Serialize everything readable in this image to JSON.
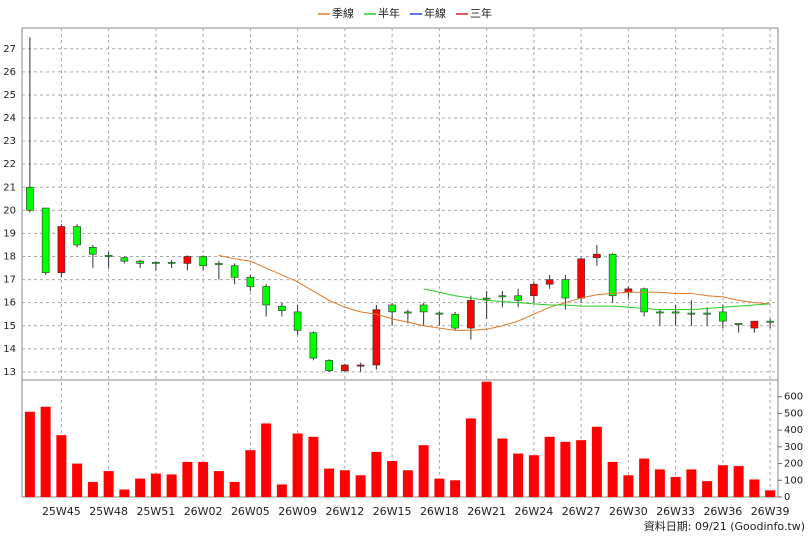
{
  "chart_data": {
    "type": "candlestick",
    "categories": [
      null,
      null,
      "25W45",
      null,
      null,
      "25W48",
      null,
      null,
      "25W51",
      null,
      null,
      "26W02",
      null,
      null,
      "26W05",
      null,
      null,
      "26W09",
      null,
      null,
      "26W12",
      null,
      null,
      "26W15",
      null,
      null,
      "26W18",
      null,
      null,
      "26W21",
      null,
      null,
      "26W24",
      null,
      null,
      "26W27",
      null,
      null,
      "26W30",
      null,
      null,
      "26W33",
      null,
      null,
      "26W36",
      null,
      null,
      "26W39"
    ],
    "open": [
      21.0,
      20.1,
      17.3,
      19.3,
      18.4,
      18.05,
      17.95,
      17.8,
      17.75,
      17.75,
      17.7,
      18.0,
      17.7,
      17.6,
      17.1,
      16.7,
      15.85,
      15.6,
      14.7,
      13.5,
      13.05,
      13.25,
      13.3,
      15.9,
      15.6,
      15.9,
      15.55,
      15.5,
      14.9,
      16.2,
      16.3,
      16.3,
      16.3,
      16.8,
      17.0,
      16.2,
      17.95,
      18.1,
      16.45,
      16.6,
      15.6,
      15.6,
      15.55,
      15.55,
      15.6,
      15.1,
      14.9,
      15.2
    ],
    "high": [
      27.5,
      20.1,
      19.4,
      19.4,
      18.5,
      18.2,
      18.0,
      17.85,
      17.8,
      17.85,
      18.05,
      18.05,
      17.8,
      17.7,
      17.2,
      16.8,
      16.0,
      15.9,
      14.75,
      13.55,
      13.35,
      13.4,
      15.9,
      16.0,
      15.7,
      16.0,
      15.6,
      15.6,
      16.3,
      16.5,
      16.5,
      16.6,
      16.9,
      17.2,
      17.2,
      17.95,
      18.5,
      18.15,
      16.7,
      16.65,
      15.7,
      15.9,
      16.1,
      15.8,
      15.9,
      15.1,
      15.2,
      15.3
    ],
    "low": [
      19.9,
      17.2,
      17.1,
      18.4,
      17.5,
      17.5,
      17.7,
      17.5,
      17.4,
      17.5,
      17.4,
      17.4,
      17.0,
      16.8,
      16.5,
      15.4,
      15.4,
      14.6,
      13.5,
      13.0,
      13.0,
      13.0,
      13.1,
      15.0,
      15.1,
      15.0,
      15.0,
      14.8,
      14.4,
      15.3,
      15.8,
      15.8,
      16.0,
      16.6,
      15.7,
      16.0,
      17.6,
      16.0,
      16.2,
      15.4,
      15.0,
      15.0,
      15.0,
      15.0,
      14.9,
      14.7,
      14.7,
      14.9
    ],
    "close": [
      20.0,
      17.3,
      19.3,
      18.5,
      18.1,
      18.0,
      17.8,
      17.7,
      17.7,
      17.7,
      18.0,
      17.6,
      17.65,
      17.1,
      16.7,
      15.9,
      15.65,
      14.8,
      13.6,
      13.05,
      13.3,
      13.3,
      15.7,
      15.6,
      15.55,
      15.6,
      15.5,
      14.9,
      16.1,
      16.15,
      16.25,
      16.1,
      16.8,
      17.0,
      16.2,
      17.9,
      18.1,
      16.3,
      16.6,
      15.6,
      15.55,
      15.55,
      15.5,
      15.5,
      15.2,
      15.05,
      15.2,
      15.15
    ],
    "up_color": "#ff0000",
    "down_color": "#00ff00",
    "ylim": [
      12.65,
      27.9
    ],
    "yticks": [
      13,
      14,
      15,
      16,
      17,
      18,
      19,
      20,
      21,
      22,
      23,
      24,
      25,
      26,
      27
    ],
    "grid": true,
    "series": [
      {
        "name": "季線",
        "color": "#e07a2a",
        "values": [
          null,
          null,
          null,
          null,
          null,
          null,
          null,
          null,
          null,
          null,
          null,
          null,
          18.05,
          17.9,
          17.8,
          17.5,
          17.2,
          16.9,
          16.5,
          16.1,
          15.8,
          15.6,
          15.5,
          15.3,
          15.15,
          15.0,
          14.9,
          14.8,
          14.8,
          14.85,
          15.0,
          15.2,
          15.5,
          15.8,
          16.0,
          16.2,
          16.35,
          16.4,
          16.45,
          16.45,
          16.45,
          16.4,
          16.4,
          16.3,
          16.25,
          16.1,
          16.0,
          15.95
        ]
      },
      {
        "name": "半年",
        "color": "#22cc22",
        "values": [
          null,
          null,
          null,
          null,
          null,
          null,
          null,
          null,
          null,
          null,
          null,
          null,
          null,
          null,
          null,
          null,
          null,
          null,
          null,
          null,
          null,
          null,
          null,
          null,
          null,
          16.6,
          16.45,
          16.3,
          16.2,
          16.1,
          16.05,
          16.0,
          15.95,
          15.9,
          15.9,
          15.85,
          15.85,
          15.85,
          15.8,
          15.75,
          15.7,
          15.7,
          15.7,
          15.75,
          15.8,
          15.85,
          15.9,
          15.95
        ]
      },
      {
        "name": "年線",
        "color": "#1f4fd8",
        "values": [
          null,
          null,
          null,
          null,
          null,
          null,
          null,
          null,
          null,
          null,
          null,
          null,
          null,
          null,
          null,
          null,
          null,
          null,
          null,
          null,
          null,
          null,
          null,
          null,
          null,
          null,
          null,
          null,
          null,
          null,
          null,
          null,
          null,
          null,
          null,
          null,
          null,
          null,
          null,
          null,
          null,
          null,
          null,
          null,
          null,
          null,
          null,
          null
        ]
      },
      {
        "name": "三年",
        "color": "#d81f1f",
        "values": [
          null,
          null,
          null,
          null,
          null,
          null,
          null,
          null,
          null,
          null,
          null,
          null,
          null,
          null,
          null,
          null,
          null,
          null,
          null,
          null,
          null,
          null,
          null,
          null,
          null,
          null,
          null,
          null,
          null,
          null,
          null,
          null,
          null,
          null,
          null,
          null,
          null,
          null,
          null,
          null,
          null,
          null,
          null,
          null,
          null,
          null,
          null,
          null
        ]
      }
    ],
    "volume": {
      "color": "#ff0000",
      "values": [
        510,
        540,
        370,
        200,
        90,
        155,
        45,
        110,
        140,
        135,
        210,
        210,
        155,
        90,
        280,
        440,
        75,
        380,
        360,
        170,
        160,
        130,
        270,
        215,
        160,
        310,
        110,
        100,
        470,
        690,
        350,
        260,
        250,
        360,
        330,
        340,
        420,
        210,
        130,
        230,
        165,
        120,
        165,
        95,
        190,
        185,
        105,
        40
      ],
      "ylim": [
        0,
        700
      ],
      "yticks": [
        0,
        100,
        200,
        300,
        400,
        500,
        600
      ]
    },
    "footer": "資料日期: 09/21 (Goodinfo.tw)"
  }
}
